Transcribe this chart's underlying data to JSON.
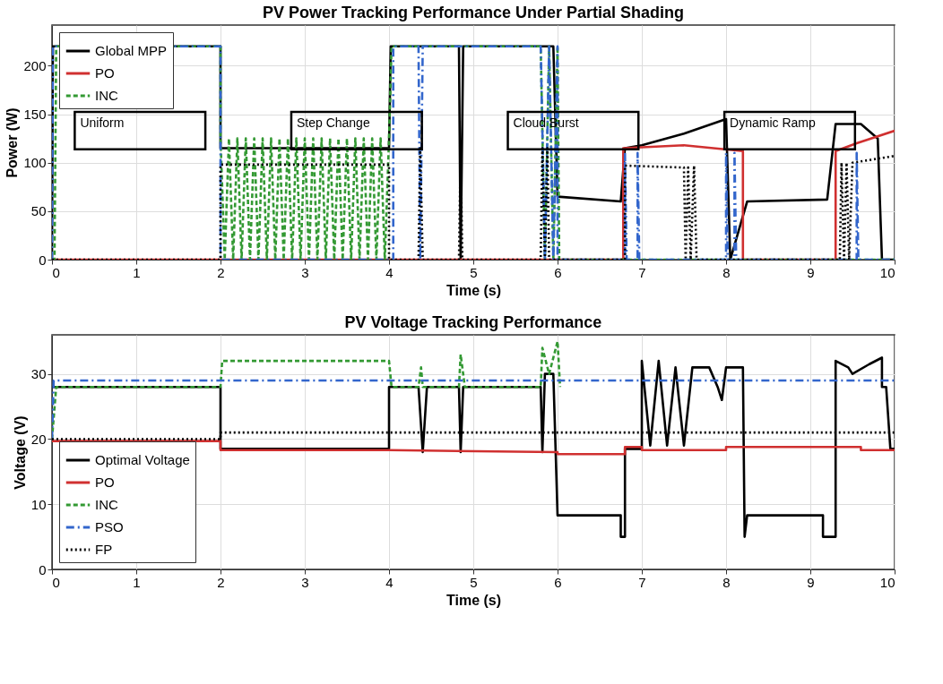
{
  "chart_data": [
    {
      "type": "line",
      "title": "PV Power Tracking Performance Under Partial Shading",
      "xlabel": "Time (s)",
      "ylabel": "Power (W)",
      "xlim": [
        0,
        10
      ],
      "ylim": [
        0,
        242
      ],
      "xticks": [
        0,
        1,
        2,
        3,
        4,
        5,
        6,
        7,
        8,
        9,
        10
      ],
      "yticks": [
        0,
        50,
        100,
        150,
        200
      ],
      "grid": true,
      "legend": "top left",
      "annotations": [
        "Uniform",
        "Step Change",
        "Cloud Burst",
        "Dynamic Ramp"
      ],
      "series": [
        {
          "name": "Global MPP",
          "color": "#000000",
          "line_style": "solid",
          "x": [
            0,
            0.01,
            2,
            2,
            4,
            4.02,
            4.83,
            4.85,
            4.88,
            5.95,
            6.0,
            6.75,
            6.8,
            7.0,
            7.5,
            8.0,
            8.05,
            8.25,
            9.2,
            9.3,
            9.6,
            9.8,
            9.85,
            10
          ],
          "values": [
            0,
            220,
            220,
            115,
            115,
            220,
            220,
            0,
            220,
            220,
            65,
            60,
            115,
            118,
            130,
            145,
            0,
            60,
            62,
            140,
            140,
            125,
            0,
            0
          ]
        },
        {
          "name": "PO",
          "color": "#d03030",
          "line_style": "solid",
          "x": [
            0,
            6.78,
            6.78,
            7.5,
            8.2,
            8.2,
            9.3,
            9.3,
            9.55,
            10
          ],
          "values": [
            0,
            0,
            115,
            118,
            112,
            0,
            0,
            112,
            120,
            133
          ]
        },
        {
          "name": "INC",
          "color": "#339933",
          "line_style": "dashed",
          "x": [
            0,
            0.03,
            0.05,
            2,
            2,
            2.05,
            2.1,
            2.15,
            2.2,
            2.25,
            2.3,
            2.35,
            2.4,
            2.45,
            2.5,
            2.55,
            2.6,
            2.65,
            2.7,
            2.75,
            2.8,
            2.85,
            2.9,
            2.95,
            3.0,
            3.05,
            3.1,
            3.15,
            3.2,
            3.25,
            3.3,
            3.35,
            3.4,
            3.45,
            3.5,
            3.55,
            3.6,
            3.65,
            3.7,
            3.75,
            3.8,
            3.85,
            3.9,
            3.95,
            4.0,
            4.03,
            5.8,
            5.85,
            5.9,
            5.95,
            6.0,
            6.02,
            10
          ],
          "values": [
            0,
            0,
            220,
            220,
            125,
            0,
            125,
            0,
            125,
            0,
            125,
            0,
            125,
            0,
            125,
            0,
            125,
            0,
            125,
            0,
            125,
            0,
            125,
            0,
            125,
            0,
            125,
            0,
            125,
            0,
            125,
            0,
            125,
            0,
            125,
            0,
            125,
            0,
            125,
            0,
            125,
            0,
            125,
            0,
            125,
            220,
            220,
            0,
            220,
            0,
            220,
            0,
            0
          ]
        },
        {
          "color": "#3366cc",
          "line_style": "dashdot",
          "x": [
            0,
            0.01,
            2,
            2.0,
            4.05,
            4.05,
            4.35,
            4.37,
            4.4,
            5.8,
            5.85,
            5.9,
            5.95,
            6.0,
            6.0,
            6.8,
            6.8,
            6.82,
            6.95,
            6.95,
            6.97,
            8.0,
            8.0,
            8.02,
            8.1,
            8.1,
            8.12,
            9.55,
            9.55,
            9.57,
            10
          ],
          "values": [
            0,
            220,
            220,
            0,
            0,
            220,
            220,
            0,
            220,
            220,
            0,
            220,
            0,
            220,
            0,
            0,
            110,
            0,
            0,
            110,
            0,
            0,
            110,
            0,
            0,
            110,
            0,
            0,
            110,
            0,
            0
          ]
        },
        {
          "color": "#000000",
          "line_style": "dotted",
          "x": [
            0,
            2,
            2,
            4,
            4,
            4.35,
            4.37,
            4.4,
            4.83,
            4.85,
            4.87,
            5.8,
            5.82,
            5.85,
            5.88,
            5.9,
            6.8,
            6.8,
            7.5,
            7.52,
            7.55,
            7.58,
            7.62,
            7.65,
            9.35,
            9.37,
            9.4,
            9.43,
            9.46,
            9.5,
            10
          ],
          "values": [
            0,
            0,
            98,
            98,
            0,
            0,
            115,
            0,
            0,
            115,
            0,
            0,
            115,
            0,
            115,
            0,
            0,
            97,
            95,
            0,
            95,
            0,
            97,
            0,
            0,
            100,
            0,
            100,
            0,
            100,
            107
          ]
        }
      ]
    },
    {
      "type": "line",
      "title": "PV Voltage Tracking Performance",
      "xlabel": "Time (s)",
      "ylabel": "Voltage (V)",
      "xlim": [
        0,
        10
      ],
      "ylim": [
        0,
        36
      ],
      "xticks": [
        0,
        1,
        2,
        3,
        4,
        5,
        6,
        7,
        8,
        9,
        10
      ],
      "yticks": [
        0,
        10,
        20,
        30
      ],
      "grid": true,
      "legend": "bottom left",
      "series": [
        {
          "name": "Optimal Voltage",
          "color": "#000000",
          "line_style": "solid",
          "x": [
            0,
            2,
            2,
            4,
            4,
            4.35,
            4.4,
            4.45,
            4.83,
            4.85,
            4.88,
            5.8,
            5.82,
            5.85,
            5.95,
            6.0,
            6.75,
            6.75,
            6.8,
            6.8,
            7.0,
            7.0,
            7.1,
            7.2,
            7.3,
            7.4,
            7.5,
            7.6,
            7.7,
            7.8,
            7.9,
            7.95,
            8.0,
            8.2,
            8.22,
            8.25,
            9.15,
            9.15,
            9.3,
            9.3,
            9.45,
            9.5,
            9.7,
            9.85,
            9.85,
            9.9,
            9.95,
            10
          ],
          "values": [
            28,
            28,
            18.5,
            18.5,
            28,
            28,
            18,
            28,
            28,
            18,
            28,
            28,
            18,
            30,
            30,
            8.3,
            8.3,
            5,
            5,
            18.5,
            18.5,
            32,
            19,
            32,
            19,
            31,
            19,
            31,
            31,
            31,
            28,
            26,
            31,
            31,
            5,
            8.3,
            8.3,
            5,
            5,
            32,
            31,
            30,
            31.5,
            32.5,
            28,
            28,
            18.5,
            18.5
          ]
        },
        {
          "name": "PO",
          "color": "#d03030",
          "line_style": "solid",
          "x": [
            0,
            2,
            2,
            4,
            6,
            6,
            6.8,
            6.8,
            7.0,
            7.0,
            8.0,
            8.0,
            9.6,
            9.6,
            10
          ],
          "values": [
            19.7,
            19.7,
            18.3,
            18.3,
            18.0,
            17.7,
            17.7,
            18.8,
            18.8,
            18.3,
            18.3,
            18.8,
            18.8,
            18.3,
            18.3
          ]
        },
        {
          "name": "INC",
          "color": "#339933",
          "line_style": "dashed",
          "x": [
            0,
            0.05,
            2,
            2.02,
            4,
            4.03,
            4.35,
            4.38,
            4.4,
            4.83,
            4.85,
            4.9,
            5.8,
            5.82,
            5.9,
            6.0,
            6.03
          ],
          "values": [
            20,
            28,
            28,
            32,
            32,
            28,
            28,
            31,
            28,
            28,
            33,
            28,
            28,
            34,
            30,
            35,
            28
          ]
        },
        {
          "name": "PSO",
          "color": "#3366cc",
          "line_style": "dashdot",
          "x": [
            0,
            0.02,
            10
          ],
          "values": [
            20,
            29,
            29
          ]
        },
        {
          "name": "FP",
          "color": "#000000",
          "line_style": "dotted",
          "x": [
            0,
            2,
            2,
            10
          ],
          "values": [
            20,
            20,
            21,
            21
          ]
        }
      ]
    }
  ]
}
